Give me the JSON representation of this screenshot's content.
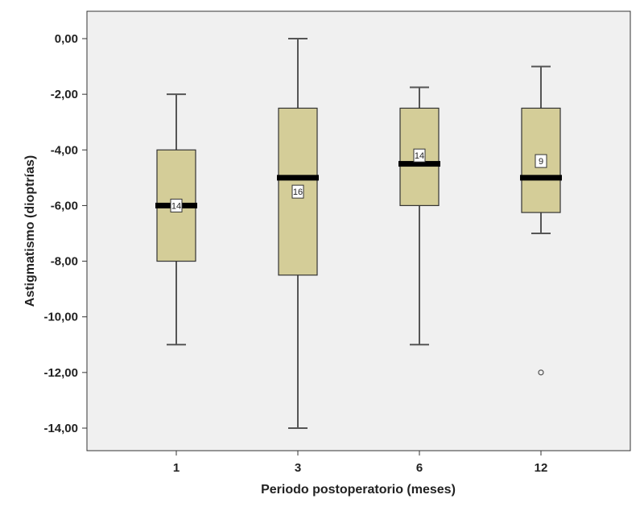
{
  "chart_data": {
    "type": "boxplot",
    "title": "",
    "xlabel": "Periodo postoperatorio (meses)",
    "ylabel": "Astigmatismo (dioptrías)",
    "ylim": [
      -14.4,
      1
    ],
    "yticks": [
      0,
      -2,
      -4,
      -6,
      -8,
      -10,
      -12,
      -14
    ],
    "ytick_labels": [
      "0,00",
      "-2,00",
      "-4,00",
      "-6,00",
      "-8,00",
      "-10,00",
      "-12,00",
      "-14,00"
    ],
    "categories": [
      "1",
      "3",
      "6",
      "12"
    ],
    "boxes": [
      {
        "category": "1",
        "whisker_high": -2,
        "q3": -4,
        "median": -6,
        "q1": -8,
        "whisker_low": -11,
        "outliers": [],
        "label": "14",
        "label_value": -6
      },
      {
        "category": "3",
        "whisker_high": 0,
        "q3": -2.5,
        "median": -5,
        "q1": -8.5,
        "whisker_low": -14,
        "outliers": [],
        "label": "16",
        "label_value": -5.5
      },
      {
        "category": "6",
        "whisker_high": -1.75,
        "q3": -2.5,
        "median": -4.5,
        "q1": -6,
        "whisker_low": -11,
        "outliers": [],
        "label": "14",
        "label_value": -4.2
      },
      {
        "category": "12",
        "whisker_high": -1,
        "q3": -2.5,
        "median": -5,
        "q1": -6.25,
        "whisker_low": -7,
        "outliers": [
          -12
        ],
        "label": "9",
        "label_value": -4.4
      }
    ],
    "colors": {
      "box": "#d4cd98",
      "background": "#f0f0f0",
      "median": "#000000"
    }
  }
}
